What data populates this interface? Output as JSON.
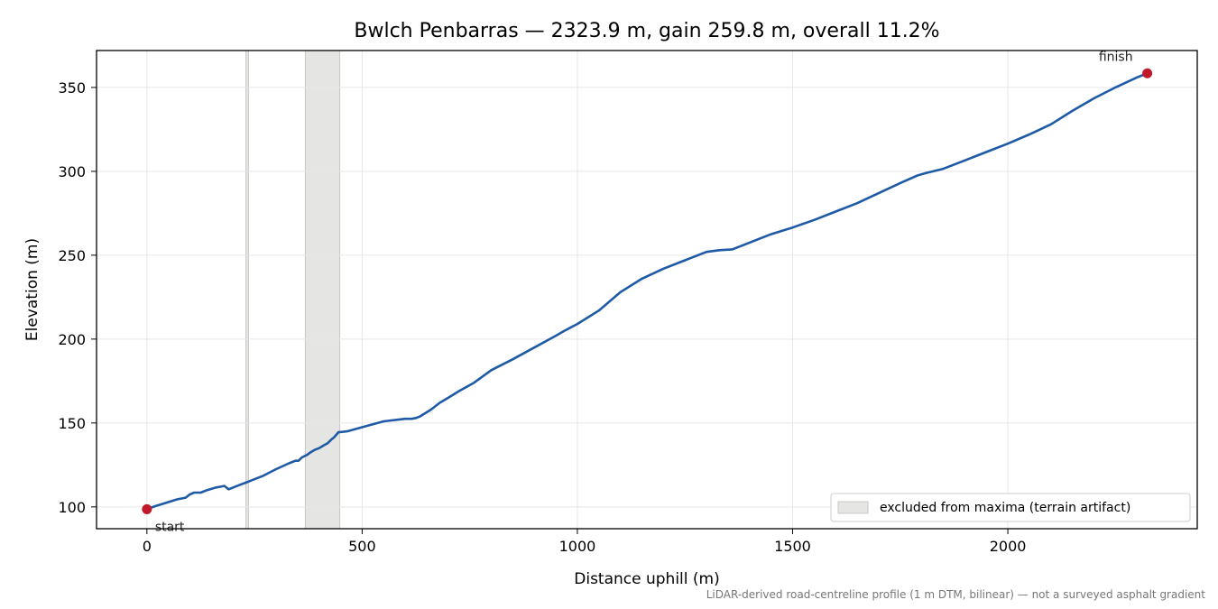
{
  "chart_data": {
    "type": "line",
    "title": "Bwlch Penbarras — 2323.9 m, gain 259.8 m, overall 11.2%",
    "xlabel": "Distance uphill (m)",
    "ylabel": "Elevation (m)",
    "xlim": [
      -117,
      2440
    ],
    "ylim": [
      87,
      372
    ],
    "xticks": [
      0,
      500,
      1000,
      1500,
      2000
    ],
    "yticks": [
      100,
      150,
      200,
      250,
      300,
      350
    ],
    "grid": true,
    "series": [
      {
        "color": "#1f5aa6",
        "x": [
          0,
          20,
          45,
          70,
          90,
          100,
          110,
          125,
          140,
          160,
          180,
          190,
          200,
          215,
          230,
          245,
          270,
          300,
          330,
          345,
          352,
          360,
          372,
          380,
          390,
          400,
          410,
          420,
          428,
          435,
          445,
          465,
          500,
          550,
          600,
          615,
          625,
          635,
          660,
          680,
          700,
          725,
          760,
          800,
          850,
          900,
          950,
          970,
          1000,
          1050,
          1100,
          1150,
          1200,
          1250,
          1300,
          1330,
          1360,
          1400,
          1450,
          1500,
          1550,
          1600,
          1650,
          1700,
          1750,
          1790,
          1810,
          1850,
          1900,
          1950,
          2000,
          2050,
          2100,
          2150,
          2200,
          2250,
          2300,
          2323.9
        ],
        "y": [
          98.6,
          100.5,
          102.5,
          104.5,
          105.5,
          107.5,
          108.5,
          108.5,
          110,
          111.5,
          112.5,
          110.5,
          111.5,
          113,
          114.5,
          116,
          118.5,
          122.5,
          126,
          127.5,
          127.5,
          129.5,
          131,
          132.5,
          134,
          135,
          136.5,
          138,
          140,
          141.5,
          144.5,
          145,
          147.5,
          151,
          152.5,
          152.5,
          153,
          154,
          158,
          162,
          165,
          169,
          174,
          181.5,
          188,
          195,
          202,
          205,
          209,
          217,
          228,
          236,
          242,
          247,
          252,
          253,
          253.5,
          257.5,
          262.5,
          266.5,
          271,
          276,
          281,
          287,
          293,
          297.5,
          299,
          301.5,
          306.5,
          311.5,
          316.5,
          322,
          328,
          336,
          343.5,
          350,
          356,
          358.4
        ]
      }
    ],
    "excluded_bands": [
      {
        "x_start": 230,
        "x_end": 236
      },
      {
        "x_start": 368,
        "x_end": 448
      }
    ],
    "points": [
      {
        "label": "start",
        "x": 0,
        "y": 98.6
      },
      {
        "label": "finish",
        "x": 2323.9,
        "y": 358.4
      }
    ],
    "legend": {
      "position": "bottom-right",
      "entries": [
        "excluded from maxima (terrain artifact)"
      ]
    },
    "footnote": "LiDAR-derived road-centreline profile (1 m DTM, bilinear) — not a surveyed asphalt gradient",
    "colors": {
      "line": "#1f5aa6",
      "marker": "#c0192a",
      "band": "#e5e5e3",
      "grid": "#e6e6e6"
    }
  }
}
